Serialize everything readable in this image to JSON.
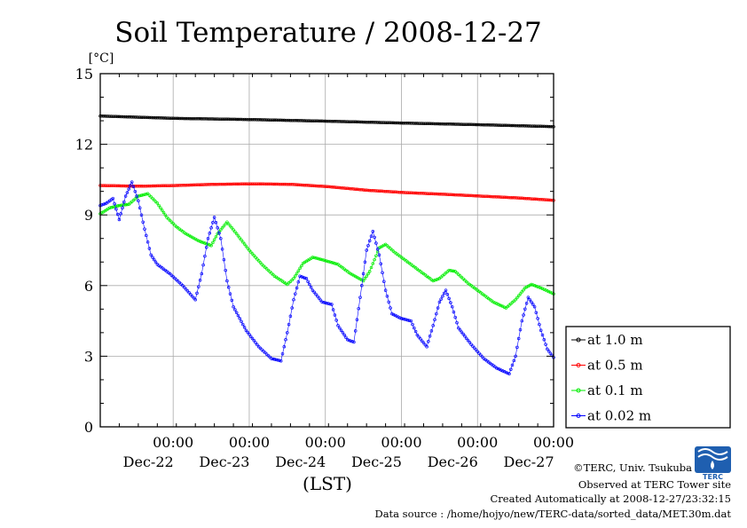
{
  "chart_data": {
    "type": "line",
    "title": "Soil Temperature / 2008-12-27",
    "ylabel": "[°C]",
    "xlabel": "(LST)",
    "ylim": [
      0,
      15
    ],
    "yticks": [
      "0",
      "3",
      "6",
      "9",
      "12",
      "15"
    ],
    "xlim_hours": [
      0,
      143
    ],
    "xticks": [
      {
        "time": "00:00",
        "date": "Dec-22",
        "hour": 23
      },
      {
        "time": "00:00",
        "date": "Dec-23",
        "hour": 47
      },
      {
        "time": "00:00",
        "date": "Dec-24",
        "hour": 71
      },
      {
        "time": "00:00",
        "date": "Dec-25",
        "hour": 95
      },
      {
        "time": "00:00",
        "date": "Dec-26",
        "hour": 119
      },
      {
        "time": "00:00",
        "date": "Dec-27",
        "hour": 143
      }
    ],
    "grid": true,
    "legend_position": "right",
    "series": [
      {
        "name": "at 1.0 m",
        "color": "#000000",
        "points": [
          [
            0,
            13.2
          ],
          [
            24,
            13.1
          ],
          [
            48,
            13.05
          ],
          [
            72,
            12.98
          ],
          [
            96,
            12.9
          ],
          [
            120,
            12.83
          ],
          [
            143,
            12.75
          ]
        ]
      },
      {
        "name": "at 0.5 m",
        "color": "#ff0000",
        "points": [
          [
            0,
            10.25
          ],
          [
            12,
            10.22
          ],
          [
            24,
            10.25
          ],
          [
            36,
            10.3
          ],
          [
            48,
            10.32
          ],
          [
            60,
            10.3
          ],
          [
            72,
            10.2
          ],
          [
            84,
            10.05
          ],
          [
            96,
            9.95
          ],
          [
            108,
            9.88
          ],
          [
            120,
            9.8
          ],
          [
            132,
            9.72
          ],
          [
            143,
            9.62
          ]
        ]
      },
      {
        "name": "at 0.1 m",
        "color": "#00ee00",
        "points": [
          [
            0,
            9.05
          ],
          [
            3,
            9.3
          ],
          [
            6,
            9.4
          ],
          [
            9,
            9.45
          ],
          [
            12,
            9.8
          ],
          [
            15,
            9.9
          ],
          [
            18,
            9.5
          ],
          [
            21,
            8.9
          ],
          [
            24,
            8.5
          ],
          [
            27,
            8.2
          ],
          [
            31,
            7.9
          ],
          [
            35,
            7.7
          ],
          [
            37,
            8.2
          ],
          [
            40,
            8.7
          ],
          [
            43,
            8.2
          ],
          [
            47,
            7.5
          ],
          [
            51,
            6.9
          ],
          [
            55,
            6.4
          ],
          [
            59,
            6.05
          ],
          [
            61,
            6.3
          ],
          [
            64,
            6.95
          ],
          [
            67,
            7.2
          ],
          [
            70,
            7.1
          ],
          [
            75,
            6.9
          ],
          [
            79,
            6.5
          ],
          [
            83,
            6.2
          ],
          [
            85,
            6.6
          ],
          [
            88,
            7.6
          ],
          [
            90,
            7.75
          ],
          [
            93,
            7.4
          ],
          [
            97,
            7.0
          ],
          [
            101,
            6.6
          ],
          [
            105,
            6.2
          ],
          [
            107,
            6.3
          ],
          [
            110,
            6.65
          ],
          [
            112,
            6.6
          ],
          [
            116,
            6.1
          ],
          [
            121,
            5.6
          ],
          [
            124,
            5.3
          ],
          [
            128,
            5.05
          ],
          [
            131,
            5.4
          ],
          [
            134,
            5.9
          ],
          [
            136,
            6.05
          ],
          [
            139,
            5.9
          ],
          [
            143,
            5.65
          ]
        ]
      },
      {
        "name": "at 0.02 m",
        "color": "#0000ff",
        "points": [
          [
            0,
            9.4
          ],
          [
            2,
            9.5
          ],
          [
            4,
            9.7
          ],
          [
            6,
            8.8
          ],
          [
            8,
            9.8
          ],
          [
            10,
            10.4
          ],
          [
            12,
            9.6
          ],
          [
            14,
            8.4
          ],
          [
            16,
            7.3
          ],
          [
            18,
            6.9
          ],
          [
            22,
            6.5
          ],
          [
            26,
            6.0
          ],
          [
            30,
            5.4
          ],
          [
            32,
            6.5
          ],
          [
            34,
            8.0
          ],
          [
            36,
            8.9
          ],
          [
            38,
            8.0
          ],
          [
            40,
            6.2
          ],
          [
            42,
            5.1
          ],
          [
            46,
            4.1
          ],
          [
            50,
            3.4
          ],
          [
            54,
            2.9
          ],
          [
            57,
            2.8
          ],
          [
            59,
            4.0
          ],
          [
            61,
            5.4
          ],
          [
            63,
            6.4
          ],
          [
            65,
            6.3
          ],
          [
            67,
            5.8
          ],
          [
            70,
            5.3
          ],
          [
            73,
            5.2
          ],
          [
            75,
            4.3
          ],
          [
            78,
            3.7
          ],
          [
            80,
            3.6
          ],
          [
            82,
            5.5
          ],
          [
            84,
            7.5
          ],
          [
            86,
            8.3
          ],
          [
            88,
            7.3
          ],
          [
            90,
            5.8
          ],
          [
            92,
            4.8
          ],
          [
            95,
            4.6
          ],
          [
            98,
            4.5
          ],
          [
            100,
            3.9
          ],
          [
            103,
            3.4
          ],
          [
            105,
            4.3
          ],
          [
            107,
            5.3
          ],
          [
            109,
            5.8
          ],
          [
            111,
            5.1
          ],
          [
            113,
            4.2
          ],
          [
            117,
            3.5
          ],
          [
            121,
            2.9
          ],
          [
            125,
            2.5
          ],
          [
            129,
            2.25
          ],
          [
            131,
            3.0
          ],
          [
            133,
            4.5
          ],
          [
            135,
            5.5
          ],
          [
            137,
            5.1
          ],
          [
            139,
            4.1
          ],
          [
            141,
            3.3
          ],
          [
            143,
            2.95
          ]
        ]
      }
    ]
  },
  "credits": {
    "copyright": "©TERC, Univ. Tsukuba",
    "observed": "Observed at TERC Tower site",
    "created": "Created Automatically at 2008-12-27/23:32:15",
    "source": "Data source : /home/hojyo/new/TERC-data/sorted_data/MET.30m.dat"
  },
  "logo": {
    "text": "TERC",
    "icon": "terc-logo-icon",
    "color": "#1f5fb0"
  }
}
